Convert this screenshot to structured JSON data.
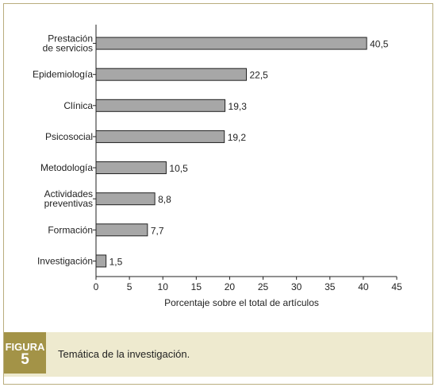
{
  "figure": {
    "label": "FIGURA",
    "number": "5",
    "caption": "Temática de la investigación."
  },
  "colors": {
    "bar_fill": "#a7a7a7",
    "badge": "#a39347",
    "caption_bg": "#eeeacf",
    "frame_border": "#b9ad7e"
  },
  "chart_data": {
    "type": "bar",
    "orientation": "horizontal",
    "categories": [
      [
        "Prestación",
        "de servicios"
      ],
      [
        "Epidemiología"
      ],
      [
        "Clínica"
      ],
      [
        "Psicosocial"
      ],
      [
        "Metodología"
      ],
      [
        "Actividades",
        "preventivas"
      ],
      [
        "Formación"
      ],
      [
        "Investigación"
      ]
    ],
    "values": [
      40.5,
      22.5,
      19.3,
      19.2,
      10.5,
      8.8,
      7.7,
      1.5
    ],
    "value_labels": [
      "40,5",
      "22,5",
      "19,3",
      "19,2",
      "10,5",
      "8,8",
      "7,7",
      "1,5"
    ],
    "xlabel": "Porcentaje sobre el total de artículos",
    "ylabel": "",
    "xlim": [
      0,
      45
    ],
    "xticks": [
      0,
      5,
      10,
      15,
      20,
      25,
      30,
      35,
      40,
      45
    ],
    "grid": false
  }
}
